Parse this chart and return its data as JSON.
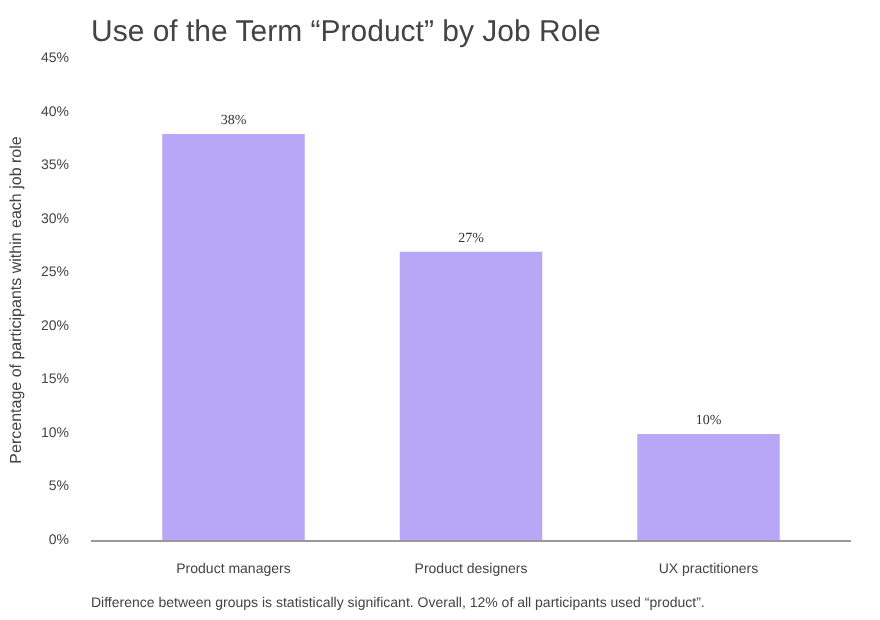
{
  "chart_data": {
    "type": "bar",
    "title": "Use of the Term “Product” by Job Role",
    "ylabel": "Percentage of participants within each job role",
    "categories": [
      "Product managers",
      "Product designers",
      "UX practitioners"
    ],
    "values": [
      38,
      27,
      10
    ],
    "value_labels": [
      "38%",
      "27%",
      "10%"
    ],
    "color": "#b8a7f6",
    "ylim": [
      0,
      45
    ],
    "yticks": [
      {
        "value": 0,
        "label": "0%"
      },
      {
        "value": 5,
        "label": "5%"
      },
      {
        "value": 10,
        "label": "10%"
      },
      {
        "value": 15,
        "label": "15%"
      },
      {
        "value": 20,
        "label": "20%"
      },
      {
        "value": 25,
        "label": "25%"
      },
      {
        "value": 30,
        "label": "30%"
      },
      {
        "value": 35,
        "label": "35%"
      },
      {
        "value": 40,
        "label": "40%"
      },
      {
        "value": 45,
        "label": "45%"
      }
    ],
    "grid": false,
    "annotations": [
      "Difference between groups is statistically significant. Overall, 12% of all participants used “product”."
    ]
  }
}
